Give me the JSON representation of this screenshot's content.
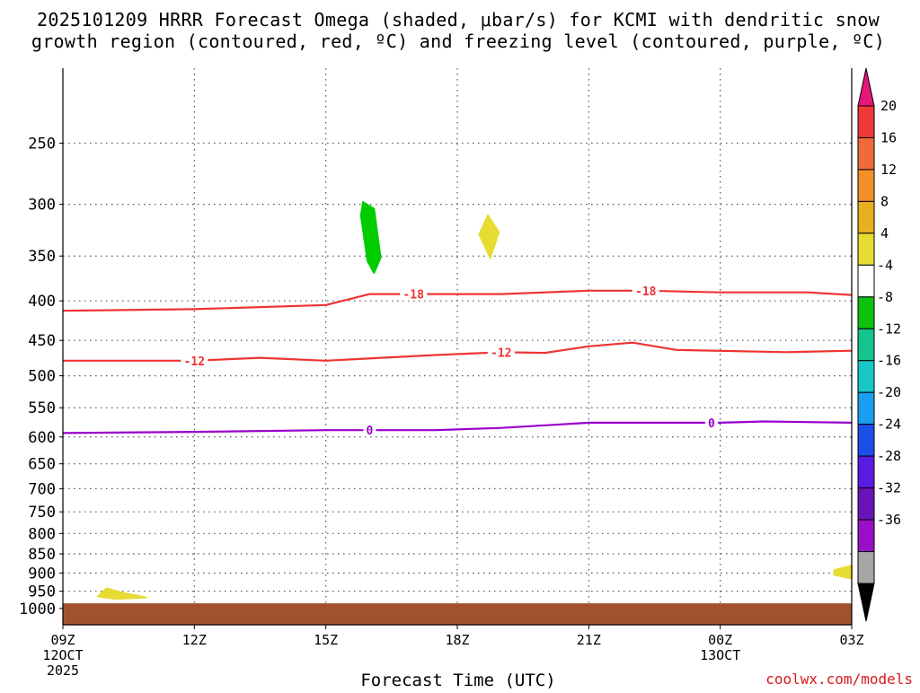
{
  "title_line1": "2025101209 HRRR Forecast Omega (shaded, μbar/s) for KCMI with dendritic snow",
  "title_line2": "growth region (contoured, red, ºC) and freezing level (contoured, purple, ºC)",
  "credit": "coolwx.com/models",
  "chart_data": {
    "type": "area",
    "title": "2025101209 HRRR Forecast Omega (shaded, μbar/s) for KCMI with dendritic snow growth region (contoured, red, ºC) and freezing level (contoured, purple, ºC)",
    "xlabel": "Forecast Time (UTC)",
    "ylabel": "",
    "x_range_hours": [
      0,
      18
    ],
    "x_ticks": [
      {
        "hour": 0,
        "label": "09Z",
        "sub1": "12OCT",
        "sub2": "2025"
      },
      {
        "hour": 3,
        "label": "12Z",
        "sub1": "",
        "sub2": ""
      },
      {
        "hour": 6,
        "label": "15Z",
        "sub1": "",
        "sub2": ""
      },
      {
        "hour": 9,
        "label": "18Z",
        "sub1": "",
        "sub2": ""
      },
      {
        "hour": 12,
        "label": "21Z",
        "sub1": "",
        "sub2": ""
      },
      {
        "hour": 15,
        "label": "00Z",
        "sub1": "13OCT",
        "sub2": ""
      },
      {
        "hour": 18,
        "label": "03Z",
        "sub1": "",
        "sub2": ""
      }
    ],
    "y_axis": "pressure (hPa), log scale, inverted",
    "y_range_hpa": [
      200,
      1050
    ],
    "y_ticks": [
      250,
      300,
      350,
      400,
      450,
      500,
      550,
      600,
      650,
      700,
      750,
      800,
      850,
      900,
      950,
      1000
    ],
    "grid": "dotted",
    "contours": [
      {
        "level": "-18",
        "color": "#ee3333",
        "label_hours": [
          8.0,
          13.3
        ],
        "points": [
          [
            0,
            412
          ],
          [
            3,
            410
          ],
          [
            6,
            405
          ],
          [
            7,
            392
          ],
          [
            8.5,
            392
          ],
          [
            10,
            392
          ],
          [
            12,
            388
          ],
          [
            13.3,
            388
          ],
          [
            15,
            390
          ],
          [
            17,
            390
          ],
          [
            18,
            393
          ]
        ]
      },
      {
        "level": "-12",
        "color": "#ee3333",
        "label_hours": [
          3.0,
          10.0
        ],
        "points": [
          [
            0,
            478
          ],
          [
            3,
            478
          ],
          [
            4.5,
            474
          ],
          [
            6,
            478
          ],
          [
            8.5,
            470
          ],
          [
            10,
            466
          ],
          [
            11,
            467
          ],
          [
            12,
            458
          ],
          [
            13,
            453
          ],
          [
            14,
            463
          ],
          [
            16.5,
            466
          ],
          [
            18,
            464
          ]
        ]
      },
      {
        "level": "0",
        "color": "#9900cc",
        "label_hours": [
          7.0,
          14.8
        ],
        "points": [
          [
            0,
            593
          ],
          [
            3,
            591
          ],
          [
            6,
            588
          ],
          [
            7,
            588
          ],
          [
            8.5,
            588
          ],
          [
            10,
            584
          ],
          [
            12,
            575
          ],
          [
            13,
            575
          ],
          [
            15,
            575
          ],
          [
            16,
            573
          ],
          [
            18,
            575
          ]
        ]
      }
    ],
    "omega_shading": [
      {
        "value_range": "-8 to -4",
        "color": "#00cc00",
        "points": [
          [
            6.85,
            298
          ],
          [
            7.1,
            304
          ],
          [
            7.2,
            335
          ],
          [
            7.25,
            352
          ],
          [
            7.1,
            368
          ],
          [
            6.95,
            355
          ],
          [
            6.8,
            310
          ]
        ]
      },
      {
        "value_range": "4 to 8",
        "color": "#e6dc32",
        "points": [
          [
            9.7,
            310
          ],
          [
            9.95,
            326
          ],
          [
            9.75,
            352
          ],
          [
            9.5,
            328
          ]
        ]
      },
      {
        "value_range": "4 to 8",
        "color": "#e6dc32",
        "points": [
          [
            0.8,
            965
          ],
          [
            1.0,
            942
          ],
          [
            1.4,
            956
          ],
          [
            1.9,
            968
          ],
          [
            1.2,
            972
          ]
        ]
      },
      {
        "value_range": "4 to 8",
        "color": "#e6dc32",
        "points": [
          [
            18,
            880
          ],
          [
            17.6,
            893
          ],
          [
            17.6,
            905
          ],
          [
            18,
            915
          ]
        ]
      }
    ],
    "terrain_hpa": 985,
    "terrain_color": "#a0522d",
    "colorbar": {
      "ticks": [
        "20",
        "16",
        "12",
        "8",
        "4",
        "-4",
        "-8",
        "-12",
        "-16",
        "-20",
        "-24",
        "-28",
        "-32",
        "-36"
      ],
      "colors": [
        "#e6167a",
        "#ef3838",
        "#f06a3a",
        "#f2902a",
        "#e8b020",
        "#e6dc32",
        "#ffffff",
        "#0ec10e",
        "#16c28e",
        "#18c6c6",
        "#1a9ef0",
        "#1c4ee8",
        "#5a1ae0",
        "#6a14b8",
        "#9a10c8",
        "#a6a6a6",
        "#000000"
      ]
    }
  }
}
